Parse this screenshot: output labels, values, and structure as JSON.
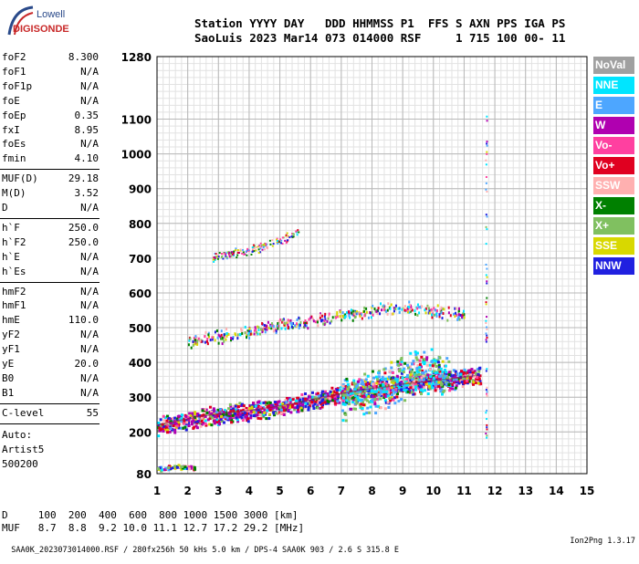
{
  "logo": {
    "line1": "Lowell",
    "line2": "DIGISONDE"
  },
  "header": {
    "labels_line": "Station YYYY DAY   DDD HHMMSS P1  FFS S AXN PPS IGA PS",
    "values_line": "SaoLuis 2023 Mar14 073 014000 RSF     1 715 100 00- 11"
  },
  "params": [
    {
      "name": "foF2",
      "value": "8.300"
    },
    {
      "name": "foF1",
      "value": "N/A"
    },
    {
      "name": "foF1p",
      "value": "N/A"
    },
    {
      "name": "foE",
      "value": "N/A"
    },
    {
      "name": "foEp",
      "value": "0.35"
    },
    {
      "name": "fxI",
      "value": "8.95"
    },
    {
      "name": "foEs",
      "value": "N/A"
    },
    {
      "name": "fmin",
      "value": "4.10"
    },
    {
      "name": "MUF(D)",
      "value": "29.18"
    },
    {
      "name": "M(D)",
      "value": "3.52"
    },
    {
      "name": "D",
      "value": "N/A"
    },
    {
      "name": "h`F",
      "value": "250.0"
    },
    {
      "name": "h`F2",
      "value": "250.0"
    },
    {
      "name": "h`E",
      "value": "N/A"
    },
    {
      "name": "h`Es",
      "value": "N/A"
    },
    {
      "name": "hmF2",
      "value": "N/A"
    },
    {
      "name": "hmF1",
      "value": "N/A"
    },
    {
      "name": "hmE",
      "value": "110.0"
    },
    {
      "name": "yF2",
      "value": "N/A"
    },
    {
      "name": "yF1",
      "value": "N/A"
    },
    {
      "name": "yE",
      "value": "20.0"
    },
    {
      "name": "B0",
      "value": "N/A"
    },
    {
      "name": "B1",
      "value": "N/A"
    },
    {
      "name": "C-level",
      "value": "55"
    }
  ],
  "auto": {
    "line1": "Auto:",
    "line2": "Artist5",
    "line3": "500200"
  },
  "legend": [
    {
      "label": "NoVal",
      "color": "#a0a0a0"
    },
    {
      "label": "NNE",
      "color": "#00e5ff"
    },
    {
      "label": "E",
      "color": "#4da6ff"
    },
    {
      "label": "W",
      "color": "#b000b0"
    },
    {
      "label": "Vo-",
      "color": "#ff40a0"
    },
    {
      "label": "Vo+",
      "color": "#e00020"
    },
    {
      "label": "SSW",
      "color": "#ffb0b0"
    },
    {
      "label": "X-",
      "color": "#008000"
    },
    {
      "label": "X+",
      "color": "#80c060"
    },
    {
      "label": "SSE",
      "color": "#d8d800"
    },
    {
      "label": "NNW",
      "color": "#2020e0"
    }
  ],
  "muf_table": {
    "d_line": "D     100  200  400  600  800 1000 1500 3000 [km]",
    "muf_line": "MUF   8.7  8.8  9.2 10.0 11.1 12.7 17.2 29.2 [MHz]"
  },
  "footer": {
    "left": "SAA0K_2023073014000.RSF / 280fx256h 50 kHs 5.0 km / DPS-4 SAA0K 903 / 2.6 S 315.8 E",
    "right": "Ion2Png 1.3.17"
  },
  "chart_data": {
    "type": "scatter",
    "xlim": [
      1,
      15
    ],
    "ylim": [
      80,
      1280
    ],
    "x_ticks": [
      1,
      2,
      3,
      4,
      5,
      6,
      7,
      8,
      9,
      10,
      11,
      12,
      13,
      14,
      15
    ],
    "y_ticks": [
      80,
      200,
      300,
      400,
      500,
      600,
      700,
      800,
      900,
      1000,
      1100,
      1280
    ],
    "grid": true,
    "traces": [
      {
        "name": "F-trace",
        "x": [
          1.0,
          1.5,
          2.0,
          2.5,
          3.0,
          3.5,
          4.0,
          4.5,
          5.0,
          5.5,
          6.0,
          6.5,
          7.0,
          7.5,
          8.0,
          8.5,
          9.0,
          9.5,
          10.0,
          10.5,
          11.0,
          11.5
        ],
        "y": [
          220,
          228,
          238,
          246,
          252,
          258,
          262,
          268,
          275,
          283,
          292,
          302,
          310,
          318,
          325,
          330,
          338,
          342,
          348,
          352,
          358,
          364
        ]
      },
      {
        "name": "F-trace-2hop",
        "x": [
          2.0,
          2.5,
          3.0,
          3.5,
          4.0,
          4.5,
          5.0,
          5.5,
          6.0,
          6.5,
          7.0,
          7.5,
          8.0,
          8.5,
          9.0,
          9.5,
          10.0,
          10.5,
          11.0
        ],
        "y": [
          462,
          470,
          478,
          485,
          492,
          500,
          508,
          516,
          522,
          530,
          538,
          546,
          552,
          556,
          560,
          556,
          550,
          545,
          540
        ]
      },
      {
        "name": "F-trace-3hop",
        "x": [
          2.8,
          3.2,
          3.6,
          4.0,
          4.4,
          4.8,
          5.2,
          5.6
        ],
        "y": [
          700,
          710,
          718,
          725,
          735,
          748,
          760,
          778
        ]
      },
      {
        "name": "spread-F",
        "x": [
          7.0,
          7.5,
          8.0,
          8.5,
          9.0,
          9.5,
          10.0,
          10.5
        ],
        "y": [
          300,
          310,
          320,
          340,
          360,
          380,
          370,
          360
        ]
      },
      {
        "name": "low-echoes",
        "x": [
          1.0,
          1.3,
          1.6,
          1.9,
          2.2
        ],
        "y": [
          95,
          100,
          105,
          102,
          98
        ]
      },
      {
        "name": "vertical-line",
        "x": [
          11.7,
          11.7,
          11.7,
          11.7,
          11.7,
          11.7
        ],
        "y": [
          180,
          400,
          600,
          800,
          900,
          1120
        ]
      }
    ]
  }
}
